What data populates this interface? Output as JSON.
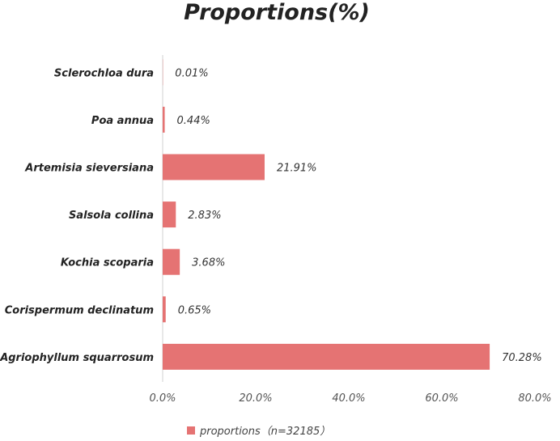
{
  "chart_data": {
    "type": "bar",
    "orientation": "horizontal",
    "title": "Proportions(%)",
    "categories": [
      "Sclerochloa dura",
      "Poa annua",
      "Artemisia sieversiana",
      "Salsola collina",
      "Kochia scoparia",
      "Corispermum declinatum",
      "Agriophyllum squarrosum"
    ],
    "series": [
      {
        "name": "proportions（n=32185）",
        "values": [
          0.01,
          0.44,
          21.91,
          2.83,
          3.68,
          0.65,
          70.28
        ],
        "data_labels": [
          "0.01%",
          "0.44%",
          "21.91%",
          "2.83%",
          "3.68%",
          "0.65%",
          "70.28%"
        ]
      }
    ],
    "xlim": [
      0,
      80
    ],
    "x_ticks": [
      "0.0%",
      "20.0%",
      "40.0%",
      "60.0%",
      "80.0%"
    ],
    "x_tick_values": [
      0,
      20,
      40,
      60,
      80
    ],
    "grid": false,
    "legend_position": "bottom",
    "bar_color": "#e57373"
  }
}
